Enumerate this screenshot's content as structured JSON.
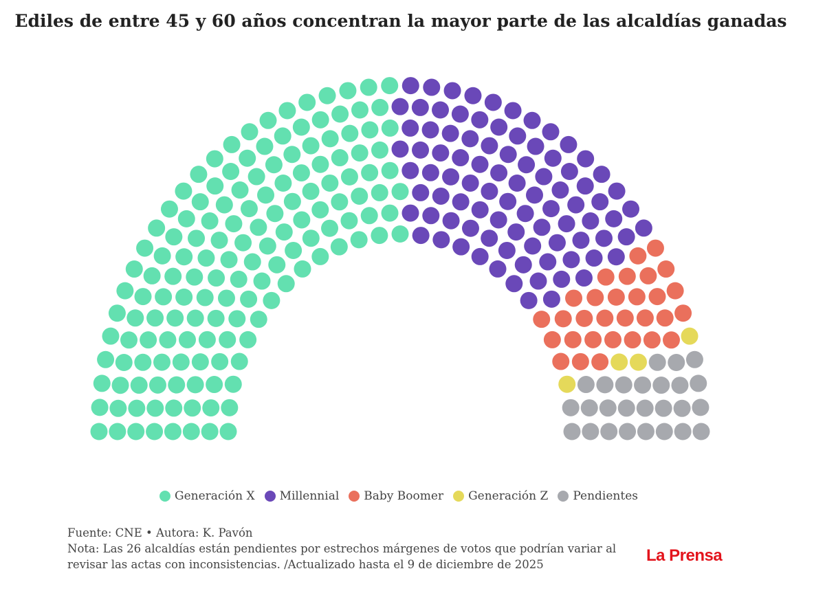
{
  "chart_data": {
    "type": "parliament",
    "title": "Ediles de entre 45 y 60 años concentran la mayor parte de las alcaldías ganadas",
    "series": [
      {
        "name": "Generación X",
        "value": 149,
        "color": "#63e0b0"
      },
      {
        "name": "Millennial",
        "value": 89,
        "color": "#6a48b8"
      },
      {
        "name": "Baby Boomer",
        "value": 30,
        "color": "#ea705c"
      },
      {
        "name": "Generación Z",
        "value": 4,
        "color": "#e5d95a"
      },
      {
        "name": "Pendientes",
        "value": 26,
        "color": "#a7a9ae"
      }
    ],
    "legend_position": "bottom"
  },
  "footer": {
    "source": "Fuente: CNE • Autora: K. Pavón",
    "note": "Nota: Las 26 alcaldías están pendientes por estrechos márgenes de votos que podrían variar al revisar las actas con inconsistencias. /Actualizado hasta el 9 de diciembre de 2025"
  },
  "logo": "La Prensa"
}
